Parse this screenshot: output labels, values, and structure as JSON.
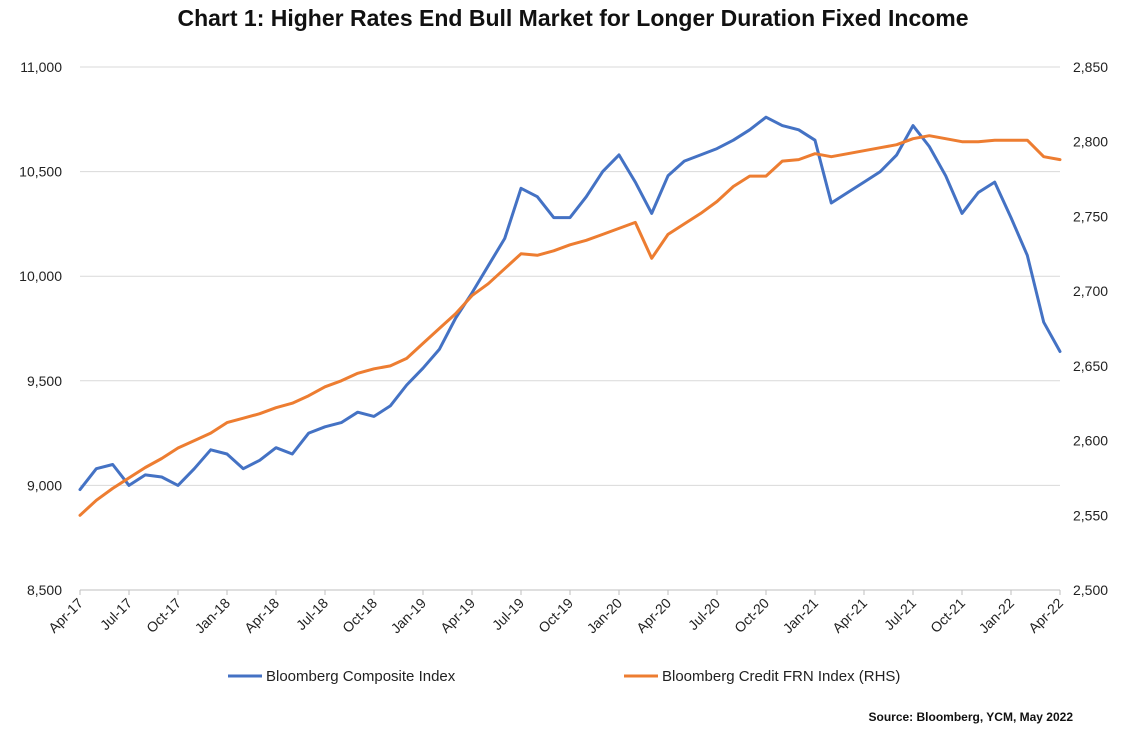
{
  "chart_data": {
    "type": "line",
    "title": "Chart 1: Higher Rates End Bull Market for Longer Duration Fixed Income",
    "xlabel": "",
    "ylabel": "",
    "y2label": "",
    "x_tick_labels": [
      "Apr-17",
      "Jul-17",
      "Oct-17",
      "Jan-18",
      "Apr-18",
      "Jul-18",
      "Oct-18",
      "Jan-19",
      "Apr-19",
      "Jul-19",
      "Oct-19",
      "Jan-20",
      "Apr-20",
      "Jul-20",
      "Oct-20",
      "Jan-21",
      "Apr-21",
      "Jul-21",
      "Oct-21",
      "Jan-22",
      "Apr-22"
    ],
    "ylim": [
      8500,
      11000
    ],
    "y_ticks": [
      8500,
      9000,
      9500,
      10000,
      10500,
      11000
    ],
    "y_tick_labels": [
      "8,500",
      "9,000",
      "9,500",
      "10,000",
      "10,500",
      "11,000"
    ],
    "y2lim": [
      2500,
      2850
    ],
    "y2_ticks": [
      2500,
      2550,
      2600,
      2650,
      2700,
      2750,
      2800,
      2850
    ],
    "y2_tick_labels": [
      "2,500",
      "2,550",
      "2,600",
      "2,650",
      "2,700",
      "2,750",
      "2,800",
      "2,850"
    ],
    "grid": "horizontal",
    "legend_position": "bottom",
    "x": [
      "Apr-17",
      "May-17",
      "Jun-17",
      "Jul-17",
      "Aug-17",
      "Sep-17",
      "Oct-17",
      "Nov-17",
      "Dec-17",
      "Jan-18",
      "Feb-18",
      "Mar-18",
      "Apr-18",
      "May-18",
      "Jun-18",
      "Jul-18",
      "Aug-18",
      "Sep-18",
      "Oct-18",
      "Nov-18",
      "Dec-18",
      "Jan-19",
      "Feb-19",
      "Mar-19",
      "Apr-19",
      "May-19",
      "Jun-19",
      "Jul-19",
      "Aug-19",
      "Sep-19",
      "Oct-19",
      "Nov-19",
      "Dec-19",
      "Jan-20",
      "Feb-20",
      "Mar-20",
      "Apr-20",
      "May-20",
      "Jun-20",
      "Jul-20",
      "Aug-20",
      "Sep-20",
      "Oct-20",
      "Nov-20",
      "Dec-20",
      "Jan-21",
      "Feb-21",
      "Mar-21",
      "Apr-21",
      "May-21",
      "Jun-21",
      "Jul-21",
      "Aug-21",
      "Sep-21",
      "Oct-21",
      "Nov-21",
      "Dec-21",
      "Jan-22",
      "Feb-22",
      "Mar-22",
      "Apr-22"
    ],
    "series": [
      {
        "name": "Bloomberg Composite Index",
        "axis": "left",
        "color": "#4472C4",
        "values": [
          8980,
          9080,
          9100,
          9000,
          9050,
          9040,
          9000,
          9080,
          9170,
          9150,
          9080,
          9120,
          9180,
          9150,
          9250,
          9280,
          9300,
          9350,
          9330,
          9380,
          9480,
          9560,
          9650,
          9800,
          9920,
          10050,
          10180,
          10420,
          10380,
          10280,
          10280,
          10380,
          10500,
          10580,
          10450,
          10300,
          10480,
          10550,
          10580,
          10610,
          10650,
          10700,
          10760,
          10720,
          10700,
          10650,
          10350,
          10400,
          10450,
          10500,
          10580,
          10720,
          10620,
          10480,
          10300,
          10400,
          10450,
          10280,
          10100,
          9780,
          9640
        ]
      },
      {
        "name": "Bloomberg Credit FRN Index (RHS)",
        "axis": "right",
        "color": "#ED7D31",
        "values": [
          2550,
          2560,
          2568,
          2575,
          2582,
          2588,
          2595,
          2600,
          2605,
          2612,
          2615,
          2618,
          2622,
          2625,
          2630,
          2636,
          2640,
          2645,
          2648,
          2650,
          2655,
          2665,
          2675,
          2685,
          2697,
          2705,
          2715,
          2725,
          2724,
          2727,
          2731,
          2734,
          2738,
          2742,
          2746,
          2722,
          2738,
          2745,
          2752,
          2760,
          2770,
          2777,
          2777,
          2787,
          2788,
          2792,
          2790,
          2792,
          2794,
          2796,
          2798,
          2802,
          2804,
          2802,
          2800,
          2800,
          2801,
          2801,
          2801,
          2790,
          2788
        ]
      }
    ],
    "annotations": [
      "Source: Bloomberg, YCM, May 2022"
    ]
  }
}
